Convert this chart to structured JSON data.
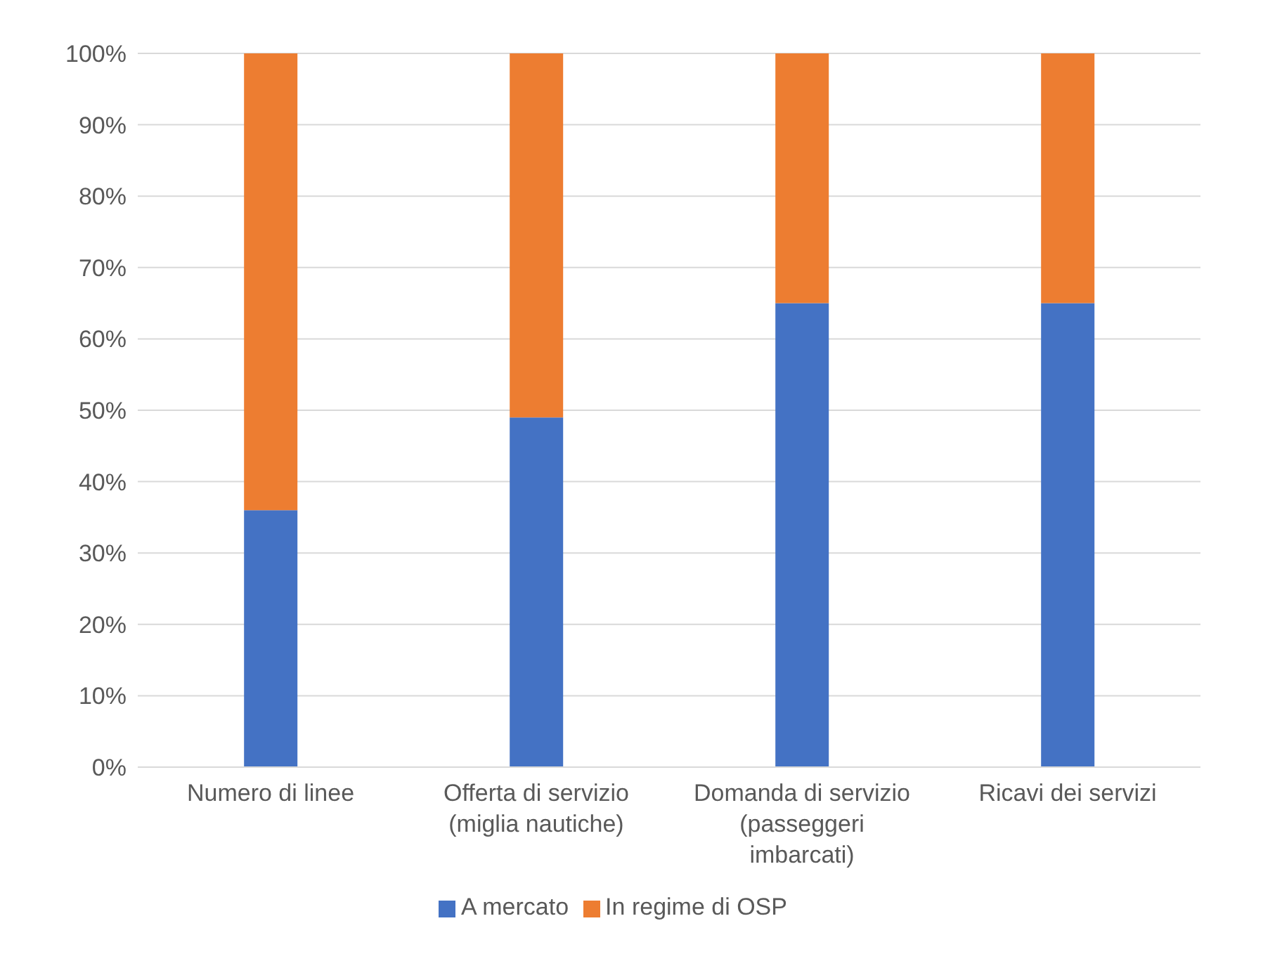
{
  "chart_data": {
    "type": "bar",
    "stacked": true,
    "categories": [
      "Numero di linee",
      "Offerta di servizio (miglia nautiche)",
      "Domanda di servizio (passeggeri imbarcati)",
      "Ricavi dei servizi"
    ],
    "series": [
      {
        "name": "A mercato",
        "color": "#4472c4",
        "values": [
          36,
          49,
          65,
          65
        ]
      },
      {
        "name": "In regime di OSP",
        "color": "#ed7d31",
        "values": [
          64,
          51,
          35,
          35
        ]
      }
    ],
    "ylim": [
      0,
      100
    ],
    "yticks": [
      {
        "value": 0,
        "label": "0%"
      },
      {
        "value": 10,
        "label": "10%"
      },
      {
        "value": 20,
        "label": "20%"
      },
      {
        "value": 30,
        "label": "30%"
      },
      {
        "value": 40,
        "label": "40%"
      },
      {
        "value": 50,
        "label": "50%"
      },
      {
        "value": 60,
        "label": "60%"
      },
      {
        "value": 70,
        "label": "70%"
      },
      {
        "value": 80,
        "label": "80%"
      },
      {
        "value": 90,
        "label": "90%"
      },
      {
        "value": 100,
        "label": "100%"
      }
    ],
    "grid": "y",
    "legend": "bottom"
  }
}
